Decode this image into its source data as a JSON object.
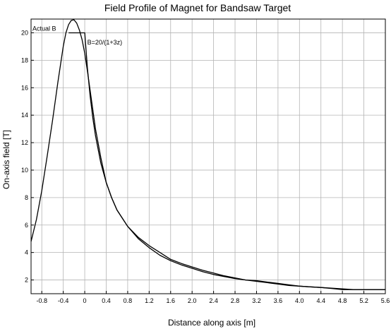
{
  "chart_data": {
    "type": "line",
    "title": "Field Profile of Magnet for Bandsaw Target",
    "xlabel": "Distance along axis  [m]",
    "ylabel": "On-axis field  [T]",
    "xlim": [
      -1.0,
      5.6
    ],
    "ylim": [
      1.0,
      21.0
    ],
    "grid": true,
    "x_ticks": [
      -0.8,
      -0.4,
      0,
      0.4,
      0.8,
      1.2,
      1.6,
      2.0,
      2.4,
      2.8,
      3.2,
      3.6,
      4.0,
      4.4,
      4.8,
      5.2,
      5.6
    ],
    "x_tick_labels": [
      "-0.8",
      "-0.4",
      "0",
      "0.4",
      "0.8",
      "1.2",
      "1.6",
      "2.0",
      "2.4",
      "2.8",
      "3.2",
      "3.6",
      "4.0",
      "4.4",
      "4.8",
      "5.2",
      "5.6"
    ],
    "y_ticks": [
      2,
      4,
      6,
      8,
      10,
      12,
      14,
      16,
      18,
      20
    ],
    "y_tick_labels": [
      "2",
      "4",
      "6",
      "8",
      "10",
      "12",
      "14",
      "16",
      "18",
      "20"
    ],
    "series": [
      {
        "name": "Actual B",
        "x": [
          -1.0,
          -0.9,
          -0.8,
          -0.7,
          -0.6,
          -0.5,
          -0.4,
          -0.35,
          -0.3,
          -0.25,
          -0.2,
          -0.15,
          -0.1,
          -0.05,
          0.0,
          0.05,
          0.1,
          0.15,
          0.2,
          0.3,
          0.4,
          0.5,
          0.6,
          0.8,
          1.0,
          1.2,
          1.4,
          1.6,
          1.8,
          2.0,
          2.2,
          2.4,
          2.6,
          2.8,
          3.0,
          3.2,
          3.4,
          3.6,
          3.8,
          4.0,
          4.2,
          4.4,
          4.6,
          4.8,
          5.0,
          5.2,
          5.4,
          5.6
        ],
        "y": [
          4.8,
          6.4,
          8.5,
          11.0,
          13.6,
          16.4,
          19.0,
          20.0,
          20.6,
          20.9,
          20.95,
          20.7,
          20.2,
          19.5,
          18.5,
          17.2,
          15.8,
          14.4,
          13.0,
          10.9,
          9.1,
          8.0,
          7.1,
          5.9,
          5.1,
          4.5,
          4.0,
          3.5,
          3.2,
          2.95,
          2.7,
          2.5,
          2.3,
          2.15,
          2.0,
          1.95,
          1.85,
          1.75,
          1.65,
          1.55,
          1.5,
          1.45,
          1.38,
          1.3,
          1.3,
          1.3,
          1.3,
          1.3
        ]
      },
      {
        "name": "B=20/(1+3z)",
        "x": [
          -0.3,
          0.0,
          0.05,
          0.1,
          0.15,
          0.2,
          0.3,
          0.4,
          0.5,
          0.6,
          0.8,
          1.0,
          1.2,
          1.4,
          1.6,
          1.8,
          2.0,
          2.2,
          2.4,
          2.6,
          2.8,
          3.0,
          3.2,
          3.4,
          3.6,
          3.8,
          4.0,
          4.2,
          4.4,
          4.6,
          4.8,
          5.0,
          5.2,
          5.4,
          5.6
        ],
        "y": [
          20.0,
          20.0,
          17.4,
          15.4,
          13.8,
          12.5,
          10.5,
          9.1,
          8.0,
          7.1,
          5.9,
          5.0,
          4.35,
          3.8,
          3.4,
          3.1,
          2.85,
          2.6,
          2.4,
          2.25,
          2.1,
          2.0,
          1.9,
          1.8,
          1.7,
          1.6,
          1.55,
          1.5,
          1.45,
          1.4,
          1.35,
          1.3,
          1.3,
          1.3,
          1.3
        ]
      }
    ],
    "annotations": [
      {
        "text": "Actual B",
        "x": -1.0,
        "y": 20.3
      },
      {
        "text": "B=20/(1+3z)",
        "x": 0.02,
        "y": 19.3
      }
    ]
  }
}
